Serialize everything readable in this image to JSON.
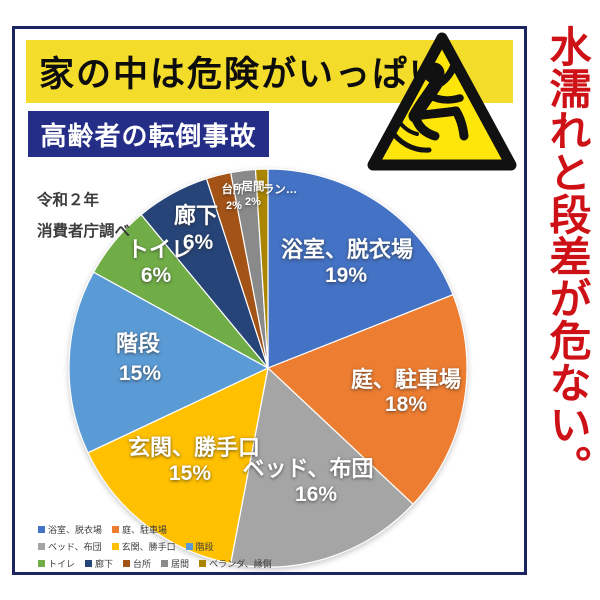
{
  "header": {
    "title": "家の中は危険がいっぱい",
    "title_bg": "#F3DD2A",
    "subtitle": "高齢者の転倒事故",
    "subtitle_bg": "#252E87"
  },
  "side_note": {
    "text": "水濡れと段差が危ない。",
    "color": "#CE1117"
  },
  "source_note": {
    "line1": "令和２年",
    "line2": "消費者庁調べ"
  },
  "warning_sign": {
    "meaning": "slip-hazard-warning-triangle",
    "fill": "#FFE60A",
    "stroke": "#111111"
  },
  "chart_data": {
    "type": "pie",
    "title": "高齢者の転倒事故",
    "source": "令和２年 消費者庁調べ",
    "start_angle_deg": 0,
    "direction": "clockwise",
    "slices": [
      {
        "label": "浴室、脱衣場",
        "value": 19,
        "pct_label": "19%",
        "color": "#4472C4"
      },
      {
        "label": "庭、駐車場",
        "value": 18,
        "pct_label": "18%",
        "color": "#ED7D31"
      },
      {
        "label": "ベッド、布団",
        "value": 16,
        "pct_label": "16%",
        "color": "#A5A5A5"
      },
      {
        "label": "玄関、勝手口",
        "value": 15,
        "pct_label": "15%",
        "color": "#FFC000"
      },
      {
        "label": "階段",
        "value": 15,
        "pct_label": "15%",
        "color": "#5B9BD5"
      },
      {
        "label": "トイレ",
        "value": 6,
        "pct_label": "6%",
        "color": "#70AD47"
      },
      {
        "label": "廊下",
        "value": 6,
        "pct_label": "6%",
        "color": "#264478"
      },
      {
        "label": "台所",
        "value": 2,
        "pct_label": "2%",
        "color": "#A45317"
      },
      {
        "label": "居間",
        "value": 2,
        "pct_label": "2%",
        "color": "#8A8A8A"
      },
      {
        "label": "ベランダ、縁側",
        "value": 1,
        "pct_label": "",
        "display_label": "ラン…",
        "color": "#A98500"
      }
    ],
    "legend_rows": [
      [
        0,
        1
      ],
      [
        2,
        3,
        4
      ],
      [
        5,
        6,
        7,
        8,
        9
      ]
    ]
  }
}
